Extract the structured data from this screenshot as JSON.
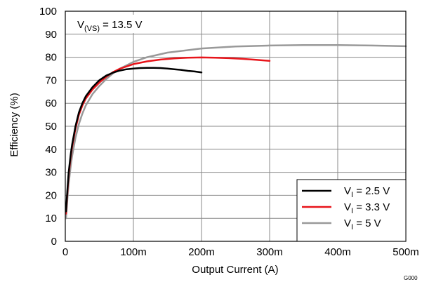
{
  "chart_data": {
    "type": "line",
    "xlabel": "Output Current (A)",
    "ylabel": "Efficiency (%)",
    "xlim": [
      0,
      500
    ],
    "ylim": [
      0,
      100
    ],
    "x_ticks": [
      0,
      100,
      200,
      300,
      400,
      500
    ],
    "x_tick_labels": [
      "0",
      "100m",
      "200m",
      "300m",
      "400m",
      "500m"
    ],
    "y_ticks": [
      0,
      10,
      20,
      30,
      40,
      50,
      60,
      70,
      80,
      90,
      100
    ],
    "y_tick_labels": [
      "0",
      "10",
      "20",
      "30",
      "40",
      "50",
      "60",
      "70",
      "80",
      "90",
      "100"
    ],
    "grid": true,
    "legend_position": "bottom-right",
    "annotation": {
      "main": "V",
      "sub": "(VS)",
      "rest": " = 13.5 V"
    },
    "figure_code": "G000",
    "series": [
      {
        "name": {
          "main": "V",
          "sub": "I",
          "rest": " = 2.5 V"
        },
        "color": "#000000",
        "x": [
          1,
          3,
          5,
          8,
          10,
          15,
          20,
          25,
          30,
          40,
          50,
          60,
          70,
          80,
          90,
          100,
          110,
          120,
          130,
          140,
          150,
          160,
          170,
          180,
          190,
          200
        ],
        "y": [
          13,
          22,
          30,
          38,
          42,
          50,
          56,
          60,
          63,
          67,
          70,
          72,
          73.3,
          74.2,
          74.8,
          75.1,
          75.3,
          75.4,
          75.4,
          75.3,
          75.1,
          74.8,
          74.5,
          74.1,
          73.8,
          73.4
        ]
      },
      {
        "name": {
          "main": "V",
          "sub": "I",
          "rest": " = 3.3 V"
        },
        "color": "#e8141a",
        "x": [
          1,
          3,
          5,
          8,
          10,
          15,
          20,
          25,
          30,
          40,
          50,
          60,
          70,
          80,
          100,
          120,
          140,
          160,
          180,
          200,
          220,
          240,
          260,
          280,
          300
        ],
        "y": [
          12,
          21,
          29,
          37,
          41,
          49,
          55,
          59,
          62,
          66,
          69,
          71.5,
          73.5,
          75,
          77,
          78.2,
          79,
          79.5,
          79.8,
          79.9,
          79.8,
          79.6,
          79.3,
          78.9,
          78.4
        ]
      },
      {
        "name": {
          "main": "V",
          "sub": "I",
          "rest": " = 5 V"
        },
        "color": "#999999",
        "x": [
          1,
          3,
          5,
          8,
          10,
          15,
          20,
          25,
          30,
          40,
          50,
          60,
          70,
          80,
          100,
          120,
          150,
          200,
          250,
          300,
          350,
          400,
          450,
          500
        ],
        "y": [
          10,
          18,
          25,
          33,
          37,
          45,
          51,
          55.5,
          59,
          64,
          67.5,
          70.5,
          73,
          75,
          78,
          80,
          82,
          83.8,
          84.7,
          85.1,
          85.3,
          85.3,
          85.1,
          84.8
        ]
      }
    ]
  }
}
